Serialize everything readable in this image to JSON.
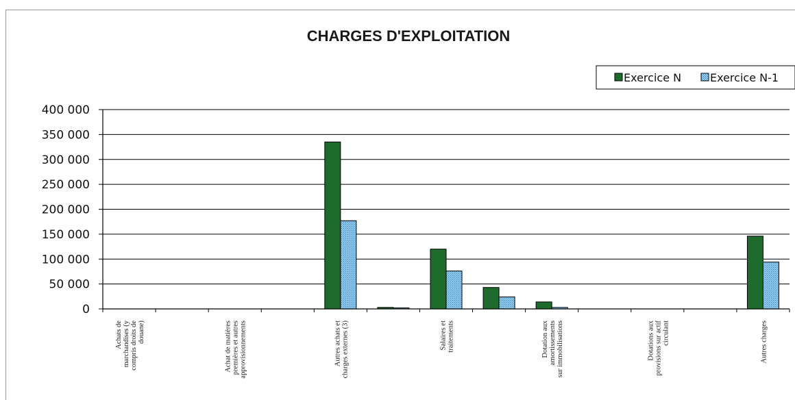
{
  "chart_data": {
    "type": "bar",
    "title": "CHARGES D'EXPLOITATION",
    "xlabel": "",
    "ylabel": "",
    "ylim": [
      0,
      400000
    ],
    "yticks": [
      "0",
      "50 000",
      "100 000",
      "150 000",
      "200 000",
      "250 000",
      "300 000",
      "350 000",
      "400 000"
    ],
    "grid": true,
    "legend_position": "top-right",
    "categories": [
      [
        "Achats de",
        "marchandises (y",
        "compris droits de",
        "douane)"
      ],
      [],
      [
        "Achat de matières",
        "premières et autres",
        "approvisionnements"
      ],
      [],
      [
        "Autres achats et",
        "charges externes (3)"
      ],
      [],
      [
        "Salaires et",
        "traitements"
      ],
      [],
      [
        "Dotation aux",
        "amortissements",
        "sur immobilisations"
      ],
      [],
      [
        "Dotations aux",
        "provisions sur actif",
        "circulant"
      ],
      [],
      [
        "Autres charges"
      ]
    ],
    "series": [
      {
        "name": "Exercice N",
        "color": "#1f6b2e",
        "values": [
          0,
          0,
          0,
          0,
          335000,
          3000,
          120000,
          43000,
          14000,
          0,
          0,
          0,
          146000
        ]
      },
      {
        "name": "Exercice N-1",
        "color": "#7fc3e8",
        "values": [
          0,
          0,
          0,
          0,
          177000,
          2000,
          76000,
          24000,
          3000,
          0,
          0,
          0,
          94000
        ]
      }
    ]
  }
}
